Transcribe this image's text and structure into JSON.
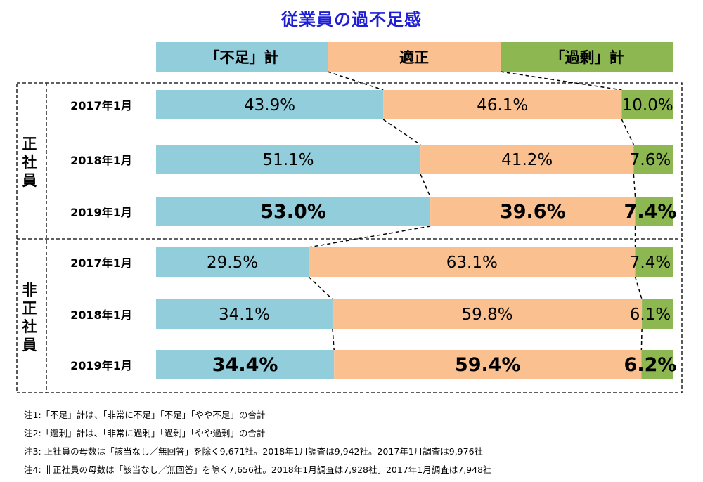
{
  "title": "従業員の過不足感",
  "colors": {
    "shortage": "#92cddc",
    "adequate": "#fac090",
    "surplus": "#8db750",
    "title": "#1f1fd6"
  },
  "chart_data": {
    "type": "bar",
    "stacked": true,
    "orientation": "horizontal",
    "xlim": [
      0,
      100
    ],
    "unit": "%",
    "legend": [
      "「不足」計",
      "適正",
      "「過剰」計"
    ],
    "legend_placement": "top",
    "groups": [
      {
        "label": "正社員",
        "rows": [
          {
            "label": "2017年1月",
            "values": [
              43.9,
              46.1,
              10.0
            ],
            "labels": [
              "43.9%",
              "46.1%",
              "10.0%"
            ],
            "bold": false
          },
          {
            "label": "2018年1月",
            "values": [
              51.1,
              41.2,
              7.6
            ],
            "labels": [
              "51.1%",
              "41.2%",
              "7.6%"
            ],
            "bold": false
          },
          {
            "label": "2019年1月",
            "values": [
              53.0,
              39.6,
              7.4
            ],
            "labels": [
              "53.0%",
              "39.6%",
              "7.4%"
            ],
            "bold": true
          }
        ]
      },
      {
        "label": "非正社員",
        "rows": [
          {
            "label": "2017年1月",
            "values": [
              29.5,
              63.1,
              7.4
            ],
            "labels": [
              "29.5%",
              "63.1%",
              "7.4%"
            ],
            "bold": false
          },
          {
            "label": "2018年1月",
            "values": [
              34.1,
              59.8,
              6.1
            ],
            "labels": [
              "34.1%",
              "59.8%",
              "6.1%"
            ],
            "bold": false
          },
          {
            "label": "2019年1月",
            "values": [
              34.4,
              59.4,
              6.2
            ],
            "labels": [
              "34.4%",
              "59.4%",
              "6.2%"
            ],
            "bold": true
          }
        ]
      }
    ]
  },
  "notes": [
    "注1:「不足」計は、「非常に不足」「不足」「やや不足」の合計",
    "注2:「過剰」計は、「非常に過剰」「過剰」「やや過剰」の合計",
    "注3: 正社員の母数は「該当なし／無回答」を除く9,671社。2018年1月調査は9,942社。2017年1月調査は9,976社",
    "注4: 非正社員の母数は「該当なし／無回答」を除く7,656社。2018年1月調査は7,928社。2017年1月調査は7,948社"
  ]
}
